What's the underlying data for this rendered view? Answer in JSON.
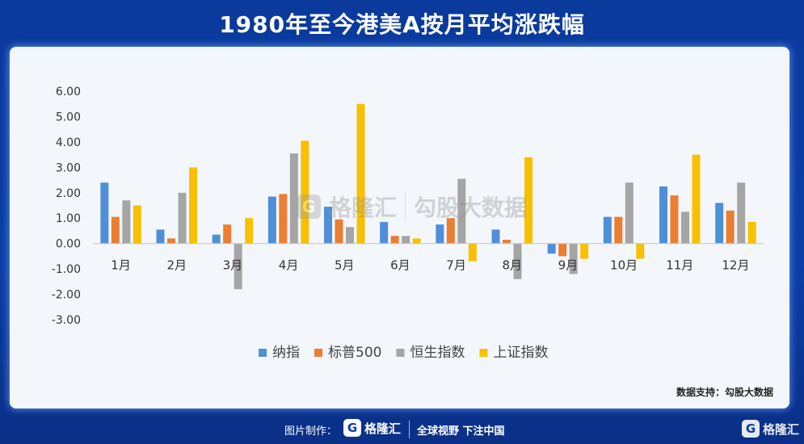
{
  "title": "1980年至今港美A按月平均涨跌幅",
  "source_text": "数据支持：勾股大数据",
  "watermark": {
    "logo_glyph": "G",
    "brand": "格隆汇",
    "brand2": "勾股大数据"
  },
  "footer": {
    "made_by": "图片制作：",
    "logo_glyph": "G",
    "brand": "格隆汇",
    "slogan": "全球视野 下注中国",
    "corner_brand": "格隆汇"
  },
  "chart_data": {
    "type": "bar",
    "categories": [
      "1月",
      "2月",
      "3月",
      "4月",
      "5月",
      "6月",
      "7月",
      "8月",
      "9月",
      "10月",
      "11月",
      "12月"
    ],
    "series": [
      {
        "name": "纳指",
        "color": "#4f8fd8",
        "values": [
          2.4,
          0.55,
          0.35,
          1.85,
          1.45,
          0.85,
          0.75,
          0.55,
          -0.4,
          1.05,
          2.25,
          1.6
        ]
      },
      {
        "name": "标普500",
        "color": "#ec7d31",
        "values": [
          1.05,
          0.2,
          0.75,
          1.95,
          0.95,
          0.3,
          1.0,
          0.15,
          -0.5,
          1.05,
          1.9,
          1.3
        ]
      },
      {
        "name": "恒生指数",
        "color": "#a5a5a5",
        "values": [
          1.7,
          2.0,
          -1.8,
          3.55,
          0.65,
          0.3,
          2.55,
          -1.4,
          -1.2,
          2.4,
          1.25,
          2.4
        ]
      },
      {
        "name": "上证指数",
        "color": "#f9c000",
        "values": [
          1.5,
          3.0,
          1.0,
          4.05,
          5.5,
          0.2,
          -0.7,
          3.4,
          -0.6,
          -0.6,
          3.5,
          0.85
        ]
      }
    ],
    "ylim": [
      -3,
      6
    ],
    "yticks": [
      "6.00",
      "5.00",
      "4.00",
      "3.00",
      "2.00",
      "1.00",
      "0.00",
      "-1.00",
      "-2.00",
      "-3.00"
    ],
    "ytick_values": [
      6,
      5,
      4,
      3,
      2,
      1,
      0,
      -1,
      -2,
      -3
    ],
    "legend_position": "bottom",
    "grid": false
  }
}
